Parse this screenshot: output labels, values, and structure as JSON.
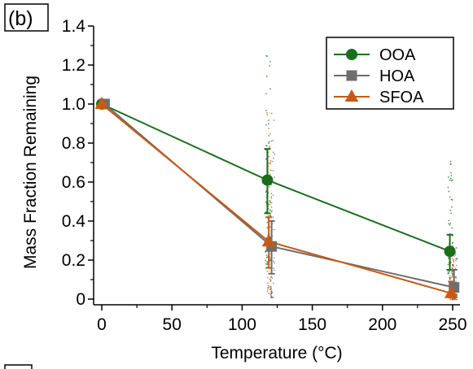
{
  "panel_label": "(b)",
  "chart_data": {
    "type": "line",
    "xlabel": "Temperature (°C)",
    "ylabel": "Mass Fraction Remaining",
    "xlim": [
      -5,
      255
    ],
    "ylim": [
      0,
      1.4
    ],
    "x_ticks": [
      0,
      50,
      100,
      150,
      200,
      250
    ],
    "y_ticks": [
      0,
      0.2,
      0.4,
      0.6,
      0.8,
      1.0,
      1.2,
      1.4
    ],
    "y_tick_labels": [
      "0",
      "0.2",
      "0.4",
      "0.6",
      "0.8",
      "1.0",
      "1.2",
      "1.4"
    ],
    "x_tick_labels": [
      "0",
      "50",
      "100",
      "150",
      "200",
      "250"
    ],
    "grid": false,
    "legend_position": "top-right",
    "series": [
      {
        "name": "OOA",
        "color": "#1a6e1a",
        "marker": "circle",
        "x": [
          0,
          118,
          248
        ],
        "y": [
          1.0,
          0.61,
          0.245
        ],
        "err_low": [
          null,
          0.44,
          0.15
        ],
        "err_high": [
          null,
          0.77,
          0.33
        ],
        "scatter_range": [
          null,
          [
            0.18,
            1.33
          ],
          [
            0.02,
            0.74
          ]
        ]
      },
      {
        "name": "HOA",
        "color": "#6e6e6e",
        "marker": "square",
        "x": [
          2,
          121,
          251
        ],
        "y": [
          1.0,
          0.27,
          0.06
        ],
        "err_low": [
          null,
          0.13,
          0.02
        ],
        "err_high": [
          null,
          0.4,
          0.15
        ],
        "scatter_range": [
          null,
          [
            0.01,
            0.98
          ],
          [
            0.0,
            0.28
          ]
        ]
      },
      {
        "name": "SFOA",
        "color": "#c65a14",
        "marker": "triangle",
        "x": [
          0,
          119,
          249
        ],
        "y": [
          1.0,
          0.295,
          0.03
        ],
        "err_low": [
          null,
          0.16,
          0.01
        ],
        "err_high": [
          null,
          0.42,
          0.09
        ],
        "scatter_range": [
          null,
          [
            0.03,
            0.99
          ],
          [
            0.0,
            0.22
          ]
        ]
      }
    ]
  }
}
